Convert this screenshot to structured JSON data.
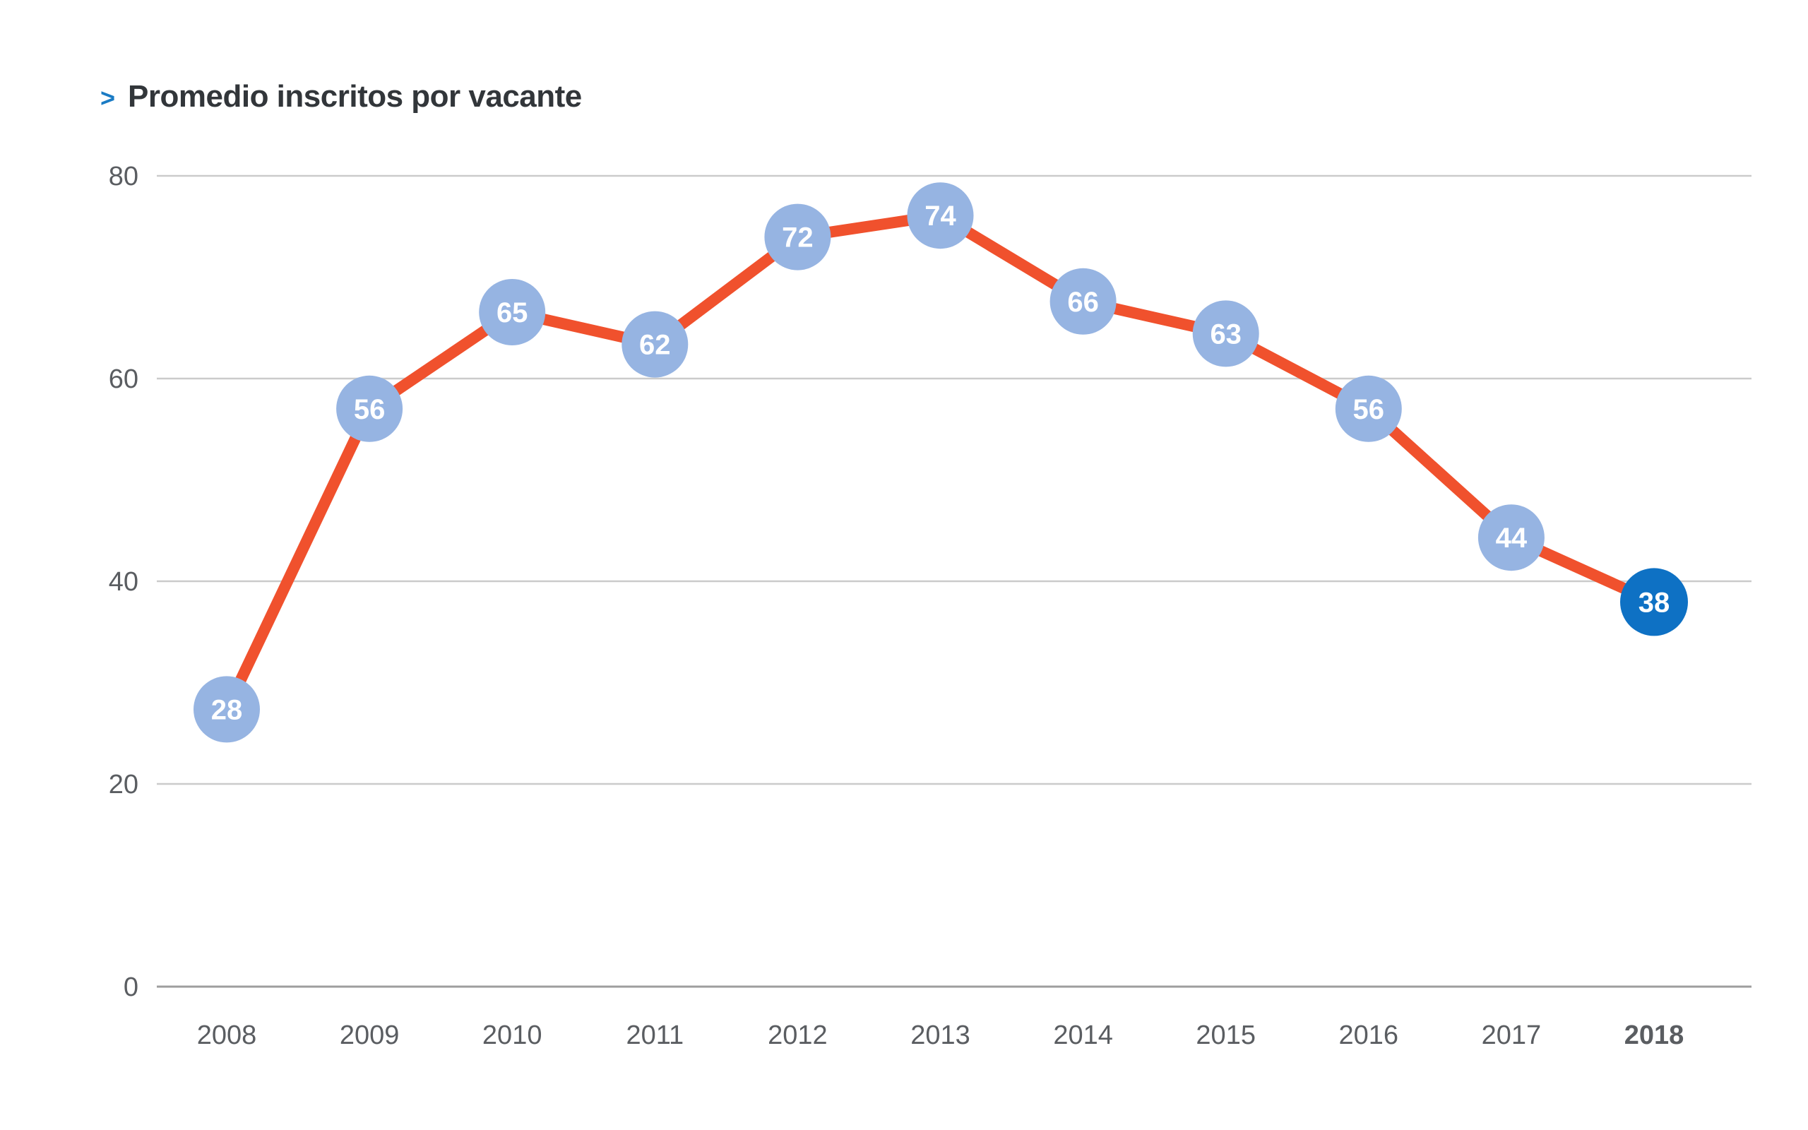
{
  "title": {
    "chevron": ">",
    "text": "Promedio inscritos por vacante"
  },
  "chart_data": {
    "type": "line",
    "title": "Promedio inscritos por vacante",
    "categories": [
      "2008",
      "2009",
      "2010",
      "2011",
      "2012",
      "2013",
      "2014",
      "2015",
      "2016",
      "2017",
      "2018"
    ],
    "values": [
      28,
      56,
      65,
      62,
      72,
      74,
      66,
      63,
      56,
      44,
      38
    ],
    "yticks": [
      0,
      20,
      40,
      60,
      80
    ],
    "ylim": [
      0,
      80
    ],
    "grid": true,
    "legend": "none",
    "highlight_last": true,
    "colors": {
      "line": "#F0512D",
      "point": "#96B4E2",
      "point_highlight": "#0E71C4",
      "point_value_text": "#FFFFFF",
      "gridline": "#CBCBCB",
      "axis_line": "#9E9E9E",
      "tick_label": "#5A5D61",
      "title_text": "#32363A",
      "chevron": "#1A7BC4"
    }
  }
}
